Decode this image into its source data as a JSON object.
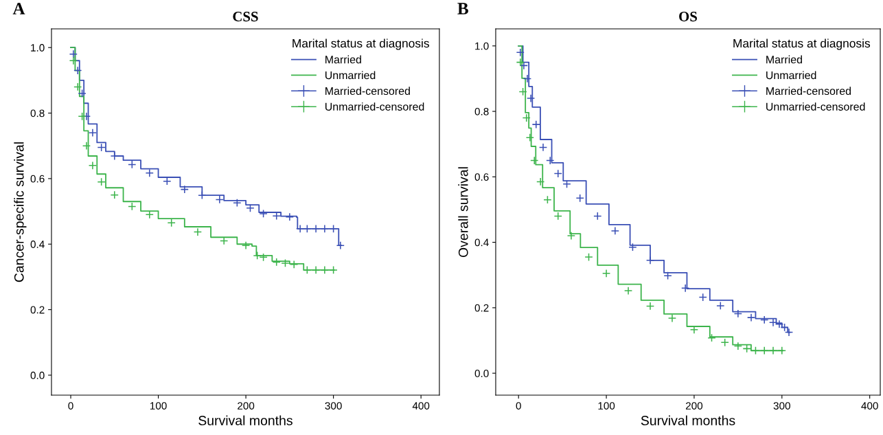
{
  "chart_data": [
    {
      "type": "step",
      "title": "CSS",
      "xlabel": "Survival months",
      "ylabel": "Cancer-specific survival",
      "legend_title": "Marital status at diagnosis",
      "legend": "top right",
      "annotations": [
        "A"
      ],
      "xlim": [
        -22,
        421
      ],
      "ylim": [
        -0.061,
        1.057
      ],
      "xticks": [
        0,
        100,
        200,
        300,
        400
      ],
      "yticks": [
        {
          "value": 0,
          "label": "0.0"
        },
        {
          "value": 0.2,
          "label": "0.2"
        },
        {
          "value": 0.4,
          "label": "0.4"
        },
        {
          "value": 0.6,
          "label": "0.6"
        },
        {
          "value": 0.8,
          "label": "0.8"
        },
        {
          "value": 1,
          "label": "1.0"
        }
      ],
      "series": [
        {
          "name": "Married",
          "color": "#3a4fb5",
          "x": [
            0,
            5,
            10,
            15,
            20,
            30,
            40,
            50,
            60,
            80,
            100,
            125,
            150,
            175,
            200,
            215,
            240,
            258,
            259,
            305,
            306,
            309
          ],
          "values": [
            1.0,
            0.96,
            0.9,
            0.83,
            0.767,
            0.71,
            0.683,
            0.669,
            0.656,
            0.63,
            0.604,
            0.575,
            0.549,
            0.533,
            0.52,
            0.497,
            0.485,
            0.482,
            0.447,
            0.447,
            0.396,
            0.396
          ]
        },
        {
          "name": "Unmarried",
          "color": "#3cb44b",
          "x": [
            0,
            5,
            10,
            15,
            20,
            30,
            40,
            60,
            80,
            100,
            130,
            160,
            190,
            207,
            212,
            230,
            250,
            266,
            301
          ],
          "values": [
            1.0,
            0.93,
            0.851,
            0.746,
            0.669,
            0.614,
            0.572,
            0.53,
            0.501,
            0.478,
            0.453,
            0.421,
            0.4,
            0.394,
            0.365,
            0.348,
            0.34,
            0.321,
            0.321
          ]
        },
        {
          "name": "Married-censored",
          "type": "scatter",
          "marker": "cross",
          "color": "#3a4fb5",
          "x": [
            3,
            8,
            13,
            18,
            25,
            35,
            50,
            70,
            90,
            110,
            130,
            150,
            170,
            190,
            205,
            220,
            235,
            250,
            262,
            270,
            280,
            290,
            300,
            308
          ],
          "values": [
            0.98,
            0.93,
            0.86,
            0.79,
            0.74,
            0.695,
            0.669,
            0.643,
            0.617,
            0.592,
            0.567,
            0.549,
            0.536,
            0.526,
            0.51,
            0.493,
            0.486,
            0.483,
            0.447,
            0.447,
            0.447,
            0.447,
            0.447,
            0.396
          ]
        },
        {
          "name": "Unmarried-censored",
          "type": "scatter",
          "marker": "cross",
          "color": "#3cb44b",
          "x": [
            3,
            8,
            13,
            18,
            25,
            35,
            50,
            70,
            90,
            115,
            145,
            175,
            200,
            213,
            220,
            235,
            245,
            255,
            270,
            280,
            290,
            300
          ],
          "values": [
            0.96,
            0.88,
            0.79,
            0.7,
            0.64,
            0.59,
            0.55,
            0.515,
            0.49,
            0.465,
            0.437,
            0.41,
            0.396,
            0.365,
            0.36,
            0.345,
            0.342,
            0.338,
            0.321,
            0.321,
            0.321,
            0.321
          ]
        }
      ]
    },
    {
      "type": "step",
      "title": "OS",
      "xlabel": "Survival months",
      "ylabel": "Overall survival",
      "legend_title": "Marital status at diagnosis",
      "legend": "top right",
      "annotations": [
        "B"
      ],
      "xlim": [
        -26,
        412
      ],
      "ylim": [
        -0.067,
        1.052
      ],
      "xticks": [
        0,
        100,
        200,
        300,
        400
      ],
      "yticks": [
        {
          "value": 0,
          "label": "0.0"
        },
        {
          "value": 0.2,
          "label": "0.2"
        },
        {
          "value": 0.4,
          "label": "0.4"
        },
        {
          "value": 0.6,
          "label": "0.6"
        },
        {
          "value": 0.8,
          "label": "0.8"
        },
        {
          "value": 1,
          "label": "1.0"
        }
      ],
      "series": [
        {
          "name": "Married",
          "color": "#3a4fb5",
          "x": [
            0,
            5,
            11.7,
            15.7,
            24.8,
            37.8,
            50.9,
            77,
            103,
            127,
            150,
            165.7,
            191.8,
            217.9,
            244,
            270,
            293.5,
            300,
            306.6,
            309
          ],
          "values": [
            1.0,
            0.95,
            0.876,
            0.813,
            0.714,
            0.643,
            0.588,
            0.517,
            0.454,
            0.391,
            0.345,
            0.307,
            0.258,
            0.223,
            0.188,
            0.167,
            0.153,
            0.14,
            0.125,
            0.125
          ]
        },
        {
          "name": "Unmarried",
          "color": "#3cb44b",
          "x": [
            0,
            3.9,
            7.8,
            11.7,
            14.4,
            19.6,
            27.4,
            40.5,
            58.7,
            70.5,
            90,
            113.5,
            139.6,
            165.7,
            191.8,
            217.9,
            244,
            264.9,
            301
          ],
          "values": [
            1.0,
            0.901,
            0.796,
            0.749,
            0.693,
            0.637,
            0.567,
            0.496,
            0.426,
            0.384,
            0.33,
            0.272,
            0.223,
            0.181,
            0.143,
            0.111,
            0.087,
            0.069,
            0.069
          ]
        },
        {
          "name": "Married-censored",
          "type": "scatter",
          "marker": "cross",
          "color": "#3a4fb5",
          "x": [
            2,
            6,
            10,
            14,
            20,
            28,
            36,
            45,
            55,
            70,
            90,
            110,
            130,
            150,
            170,
            190,
            210,
            230,
            250,
            265,
            280,
            290,
            297,
            303,
            308
          ],
          "values": [
            0.98,
            0.94,
            0.9,
            0.84,
            0.76,
            0.69,
            0.65,
            0.61,
            0.578,
            0.535,
            0.48,
            0.435,
            0.385,
            0.345,
            0.298,
            0.26,
            0.232,
            0.206,
            0.182,
            0.17,
            0.163,
            0.155,
            0.15,
            0.14,
            0.125
          ]
        },
        {
          "name": "Unmarried-censored",
          "type": "scatter",
          "marker": "cross",
          "color": "#3cb44b",
          "x": [
            2,
            5,
            9,
            13,
            18,
            25,
            33,
            45,
            60,
            80,
            100,
            125,
            150,
            175,
            200,
            220,
            235,
            250,
            260,
            270,
            280,
            290,
            300
          ],
          "values": [
            0.95,
            0.86,
            0.78,
            0.72,
            0.65,
            0.585,
            0.53,
            0.48,
            0.42,
            0.355,
            0.305,
            0.252,
            0.205,
            0.168,
            0.133,
            0.108,
            0.094,
            0.083,
            0.075,
            0.069,
            0.069,
            0.069,
            0.069
          ]
        }
      ]
    }
  ]
}
